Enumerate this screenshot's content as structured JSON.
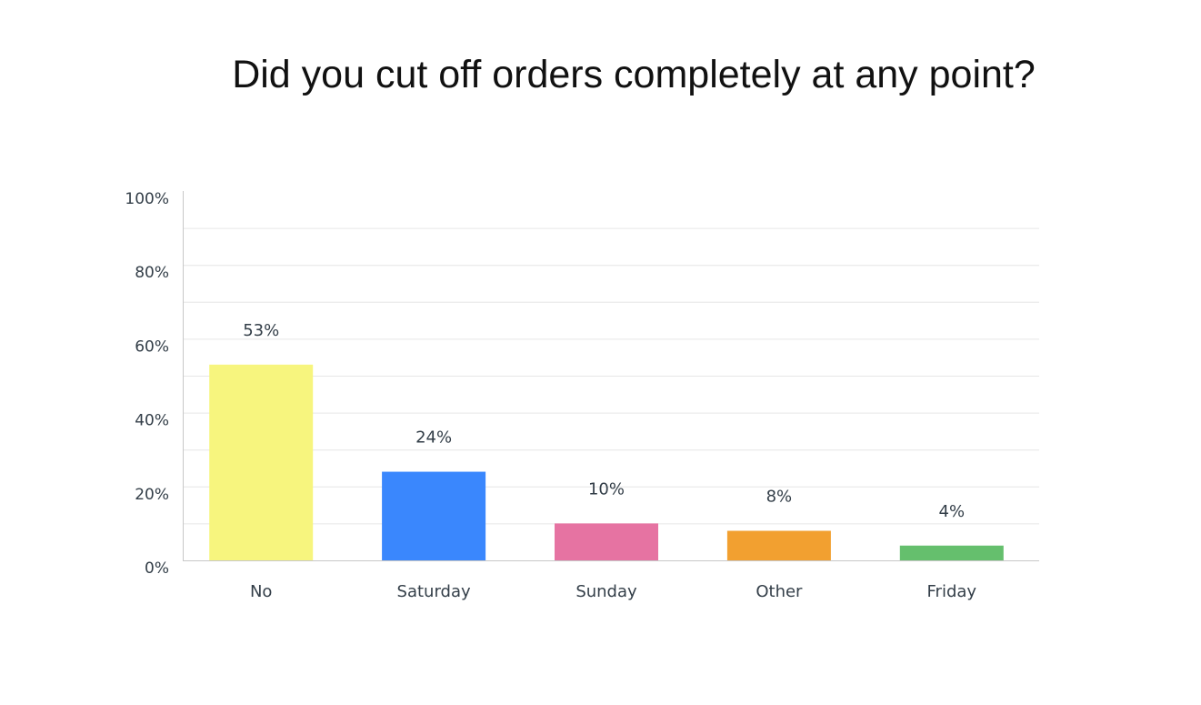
{
  "chart_data": {
    "type": "bar",
    "title": "Did you cut off orders completely at any point?",
    "xlabel": "",
    "ylabel": "",
    "ylim": [
      0,
      100
    ],
    "yticks": [
      0,
      20,
      40,
      60,
      80,
      100
    ],
    "ytick_labels": [
      "0%",
      "20%",
      "40%",
      "60%",
      "80%",
      "100%"
    ],
    "grid": true,
    "categories": [
      "No",
      "Saturday",
      "Sunday",
      "Other",
      "Friday"
    ],
    "values": [
      53,
      24,
      10,
      8,
      4
    ],
    "data_labels": [
      "53%",
      "24%",
      "10%",
      "8%",
      "4%"
    ],
    "colors": [
      "#f7f57e",
      "#3a87fd",
      "#e673a2",
      "#f2a030",
      "#65bf6d"
    ]
  }
}
